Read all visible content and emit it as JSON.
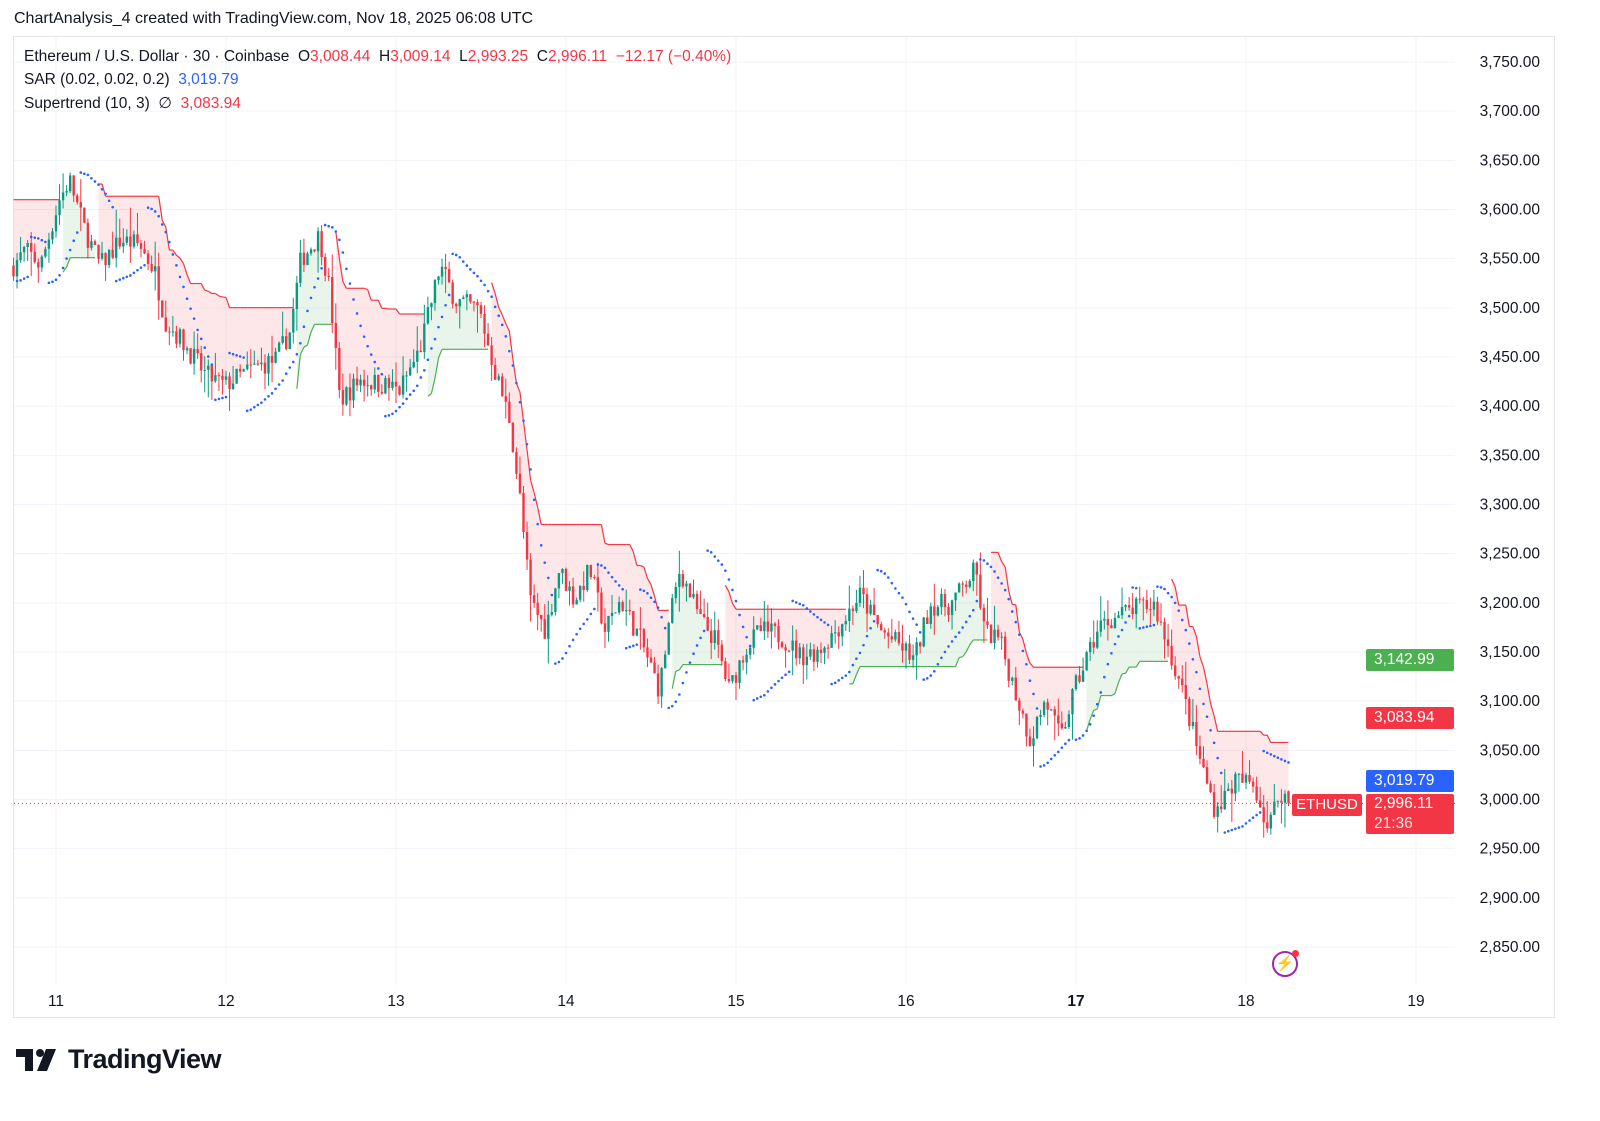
{
  "header": {
    "title": "ChartAnalysis_4 created with TradingView.com, Nov 18, 2025 06:08 UTC"
  },
  "legend": {
    "symbol": "Ethereum / U.S. Dollar · 30 · Coinbase",
    "o_label": "O",
    "o": "3,008.44",
    "h_label": "H",
    "h": "3,009.14",
    "l_label": "L",
    "l": "2,993.25",
    "c_label": "C",
    "c": "2,996.11",
    "change": "−12.17 (−0.40%)",
    "sar_label": "SAR (0.02, 0.02, 0.2)",
    "sar_value": "3,019.79",
    "st_label": "Supertrend (10, 3)",
    "st_icon": "∅",
    "st_value": "3,083.94"
  },
  "price_tags": {
    "green": "3,142.99",
    "supertrend": "3,083.94",
    "sar": "3,019.79",
    "last": "2,996.11",
    "countdown": "21:36",
    "symbol": "ETHUSD"
  },
  "colors": {
    "up": "#089981",
    "down": "#f23645",
    "sar": "#2962ff",
    "st_up": "#4caf50",
    "st_down": "#f23645",
    "tag_green": "#4caf50",
    "tag_blue": "#2962ff"
  },
  "brand": {
    "name": "TradingView"
  },
  "chart_data": {
    "type": "candlestick",
    "interval_minutes": 30,
    "xlim": [
      10.75,
      19.2
    ],
    "ylim": [
      2825,
      3775
    ],
    "y_ticks": [
      2850,
      2900,
      2950,
      3000,
      3050,
      3100,
      3150,
      3200,
      3250,
      3300,
      3350,
      3400,
      3450,
      3500,
      3550,
      3600,
      3650,
      3700,
      3750
    ],
    "y_tick_labels": [
      "2,850.00",
      "2,900.00",
      "2,950.00",
      "3,000.00",
      "3,050.00",
      "3,100.00",
      "3,150.00",
      "3,200.00",
      "3,250.00",
      "3,300.00",
      "3,350.00",
      "3,400.00",
      "3,450.00",
      "3,500.00",
      "3,550.00",
      "3,600.00",
      "3,650.00",
      "3,700.00",
      "3,750.00"
    ],
    "x_ticks": [
      11,
      12,
      13,
      14,
      15,
      16,
      17,
      18,
      19
    ],
    "x_tick_labels": [
      "11",
      "12",
      "13",
      "14",
      "15",
      "16",
      "17",
      "18",
      "19"
    ],
    "grid": true,
    "last_candle": {
      "open": 3008.44,
      "high": 3009.14,
      "low": 2993.25,
      "close": 2996.11
    },
    "price_path": [
      [
        10.75,
        3543
      ],
      [
        10.82,
        3559
      ],
      [
        10.91,
        3543
      ],
      [
        11.02,
        3610
      ],
      [
        11.08,
        3630
      ],
      [
        11.17,
        3579
      ],
      [
        11.26,
        3543
      ],
      [
        11.38,
        3569
      ],
      [
        11.49,
        3564
      ],
      [
        11.58,
        3538
      ],
      [
        11.64,
        3488
      ],
      [
        11.76,
        3462
      ],
      [
        11.88,
        3432
      ],
      [
        11.99,
        3421
      ],
      [
        12.14,
        3437
      ],
      [
        12.29,
        3447
      ],
      [
        12.38,
        3477
      ],
      [
        12.44,
        3549
      ],
      [
        12.55,
        3574
      ],
      [
        12.61,
        3518
      ],
      [
        12.67,
        3406
      ],
      [
        12.79,
        3427
      ],
      [
        12.94,
        3421
      ],
      [
        13.02,
        3416
      ],
      [
        13.14,
        3457
      ],
      [
        13.26,
        3543
      ],
      [
        13.35,
        3508
      ],
      [
        13.49,
        3498
      ],
      [
        13.58,
        3437
      ],
      [
        13.67,
        3386
      ],
      [
        13.73,
        3305
      ],
      [
        13.79,
        3203
      ],
      [
        13.88,
        3172
      ],
      [
        13.96,
        3234
      ],
      [
        14.05,
        3203
      ],
      [
        14.14,
        3234
      ],
      [
        14.23,
        3172
      ],
      [
        14.32,
        3203
      ],
      [
        14.44,
        3162
      ],
      [
        14.55,
        3111
      ],
      [
        14.61,
        3183
      ],
      [
        14.67,
        3234
      ],
      [
        14.79,
        3183
      ],
      [
        14.88,
        3162
      ],
      [
        14.96,
        3111
      ],
      [
        15.05,
        3152
      ],
      [
        15.14,
        3172
      ],
      [
        15.26,
        3167
      ],
      [
        15.38,
        3146
      ],
      [
        15.49,
        3152
      ],
      [
        15.61,
        3177
      ],
      [
        15.73,
        3208
      ],
      [
        15.85,
        3172
      ],
      [
        15.96,
        3157
      ],
      [
        16.05,
        3142
      ],
      [
        16.14,
        3198
      ],
      [
        16.26,
        3198
      ],
      [
        16.41,
        3234
      ],
      [
        16.46,
        3172
      ],
      [
        16.55,
        3162
      ],
      [
        16.64,
        3111
      ],
      [
        16.73,
        3061
      ],
      [
        16.82,
        3101
      ],
      [
        16.91,
        3061
      ],
      [
        16.99,
        3111
      ],
      [
        17.08,
        3152
      ],
      [
        17.14,
        3177
      ],
      [
        17.32,
        3193
      ],
      [
        17.46,
        3198
      ],
      [
        17.55,
        3152
      ],
      [
        17.64,
        3101
      ],
      [
        17.73,
        3040
      ],
      [
        17.82,
        2989
      ],
      [
        17.94,
        3020
      ],
      [
        18.05,
        3015
      ],
      [
        18.13,
        2969
      ],
      [
        18.2,
        3010
      ],
      [
        18.25,
        2996.11
      ]
    ],
    "sar_params": [
      0.02,
      0.02,
      0.2
    ],
    "supertrend_params": [
      10,
      3
    ]
  }
}
